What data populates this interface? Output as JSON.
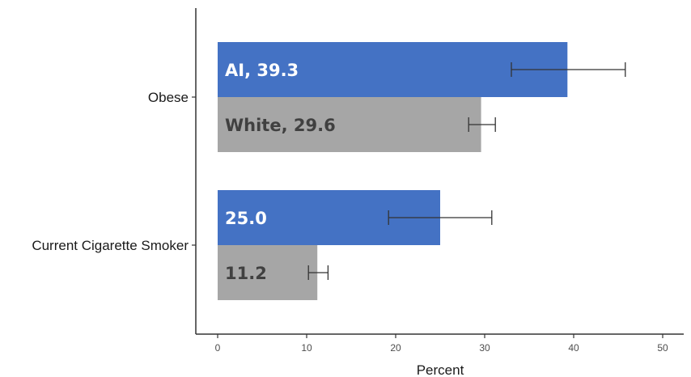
{
  "chart_data": {
    "type": "bar",
    "orientation": "horizontal",
    "categories": [
      "Obese",
      "Current Cigarette Smoker"
    ],
    "series": [
      {
        "color": "#4472c4",
        "label_color": "#ffffff",
        "values": [
          39.3,
          25.0
        ],
        "ci_low": [
          33.0,
          19.2
        ],
        "ci_high": [
          45.8,
          30.8
        ],
        "labels": [
          "AI, 39.3",
          "25.0"
        ]
      },
      {
        "color": "#a6a6a6",
        "label_color": "#404040",
        "values": [
          29.6,
          11.2
        ],
        "ci_low": [
          28.2,
          10.2
        ],
        "ci_high": [
          31.2,
          12.4
        ],
        "labels": [
          "White, 29.6",
          "11.2"
        ]
      }
    ],
    "xlabel": "Percent",
    "xlim": [
      0,
      50
    ],
    "xticks": [
      0,
      10,
      20,
      30,
      40,
      50
    ],
    "grid": false,
    "legend": "none"
  }
}
